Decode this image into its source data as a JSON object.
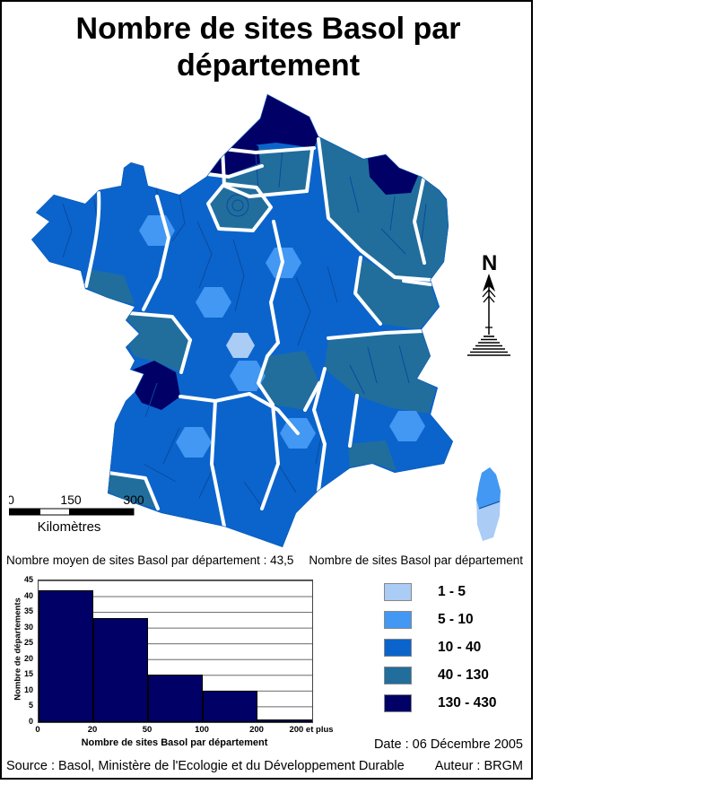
{
  "title": "Nombre de sites Basol par département",
  "stats_line": "Nombre moyen de sites Basol par département : 43,5",
  "map": {
    "north_label": "N",
    "scalebar": {
      "ticks": [
        "0",
        "150",
        "300"
      ],
      "unit_label": "Kilomètres"
    }
  },
  "legend": {
    "title": "Nombre de sites Basol par département",
    "classes": [
      {
        "label": "1 - 5",
        "color": "#AACCF5"
      },
      {
        "label": "5 - 10",
        "color": "#4298F2"
      },
      {
        "label": "10 - 40",
        "color": "#0B64CC"
      },
      {
        "label": "40 - 130",
        "color": "#216E9D"
      },
      {
        "label": "130 - 430",
        "color": "#000066"
      }
    ]
  },
  "chart_data": {
    "type": "bar",
    "title": "Nombre moyen de sites Basol par département : 43,5",
    "xlabel": "Nombre de sites Basol par département",
    "ylabel": "Nombre de départements",
    "bins": [
      "0-20",
      "20-50",
      "50-100",
      "100-200",
      "200 et plus"
    ],
    "values": [
      42,
      33,
      15,
      10,
      1
    ],
    "x_tick_labels": [
      "0",
      "20",
      "50",
      "100",
      "200",
      "200 et plus"
    ],
    "yticks": [
      0,
      5,
      10,
      15,
      20,
      25,
      30,
      35,
      40,
      45
    ],
    "ylim": [
      0,
      45
    ],
    "bar_color": "#000066",
    "grid": "horizontal",
    "legend_position": "none"
  },
  "footer": {
    "date": "Date : 06 Décembre 2005",
    "author": "Auteur : BRGM",
    "source": "Source : Basol, Ministère de l'Ecologie et du Développement Durable"
  }
}
